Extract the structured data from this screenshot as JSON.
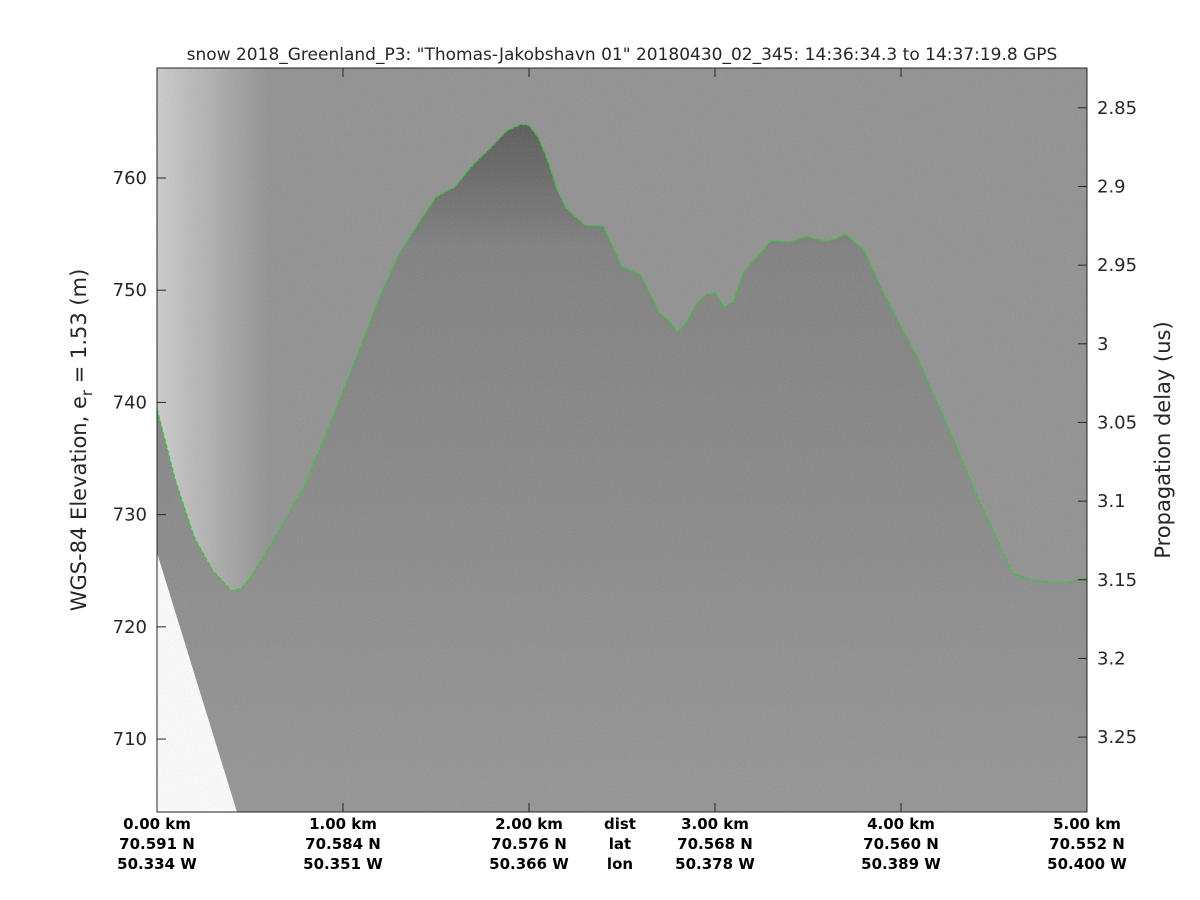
{
  "chart_data": {
    "type": "radar-echogram",
    "title": "snow 2018_Greenland_P3: \"Thomas-Jakobshavn 01\"  20180430_02_345: 14:36:34.3 to 14:37:19.8 GPS",
    "ylabel_left_main": "WGS-84 Elevation, e",
    "ylabel_left_sub": "r",
    "ylabel_left_tail": " = 1.53 (m)",
    "ylabel_right": "Propagation delay (us)",
    "x_range_km": [
      0,
      5
    ],
    "y_left_range_m": [
      703.5,
      769.8
    ],
    "y_left_ticks": [
      710,
      720,
      730,
      740,
      750,
      760
    ],
    "y_left_tick_labels": [
      "710",
      "720",
      "730",
      "740",
      "750",
      "760"
    ],
    "y_right_ticks": [
      2.85,
      2.9,
      2.95,
      3.0,
      3.05,
      3.1,
      3.15,
      3.2,
      3.25
    ],
    "y_right_tick_labels": [
      "2.85",
      "2.9",
      "2.95",
      "3",
      "3.05",
      "3.1",
      "3.15",
      "3.2",
      "3.25"
    ],
    "y_right_range_us": [
      2.8247,
      3.2976
    ],
    "x_ticks_km": [
      0,
      1,
      2,
      3,
      4,
      5
    ],
    "x_labels": [
      {
        "dist": "0.00 km",
        "lat": "70.591 N",
        "lon": "50.334 W"
      },
      {
        "dist": "1.00 km",
        "lat": "70.584 N",
        "lon": "50.351 W"
      },
      {
        "dist": "2.00 km",
        "lat": "70.576 N",
        "lon": "50.366 W"
      },
      {
        "dist": "3.00 km",
        "lat": "70.568 N",
        "lon": "50.378 W"
      },
      {
        "dist": "4.00 km",
        "lat": "70.560 N",
        "lon": "50.389 W"
      },
      {
        "dist": "5.00 km",
        "lat": "70.552 N",
        "lon": "50.400 W"
      }
    ],
    "x_row_captions": {
      "dist": "dist",
      "lat": "lat",
      "lon": "lon"
    },
    "surface_line_color": "#2ecc2e",
    "surface_track": {
      "dist_km": [
        0.0,
        0.1,
        0.2,
        0.3,
        0.4,
        0.45,
        0.5,
        0.6,
        0.7,
        0.8,
        0.9,
        1.0,
        1.1,
        1.2,
        1.3,
        1.4,
        1.5,
        1.6,
        1.7,
        1.8,
        1.88,
        1.96,
        2.0,
        2.05,
        2.1,
        2.15,
        2.2,
        2.3,
        2.4,
        2.5,
        2.6,
        2.7,
        2.75,
        2.8,
        2.85,
        2.9,
        2.95,
        3.0,
        3.05,
        3.1,
        3.15,
        3.2,
        3.25,
        3.3,
        3.4,
        3.5,
        3.55,
        3.6,
        3.65,
        3.7,
        3.8,
        3.9,
        4.0,
        4.1,
        4.2,
        4.3,
        4.4,
        4.5,
        4.6,
        4.7,
        4.8,
        4.9,
        5.0
      ],
      "elev_m": [
        739.4,
        733.0,
        728.0,
        725.0,
        723.2,
        723.4,
        724.3,
        727.0,
        729.8,
        732.8,
        736.8,
        741.0,
        745.2,
        749.5,
        753.2,
        755.8,
        758.3,
        759.2,
        761.2,
        762.8,
        764.2,
        764.8,
        764.7,
        763.6,
        761.6,
        759.0,
        757.3,
        755.8,
        755.7,
        752.1,
        751.4,
        748.0,
        747.3,
        746.3,
        747.2,
        748.8,
        749.6,
        749.8,
        748.5,
        749.0,
        751.5,
        752.5,
        753.4,
        754.4,
        754.3,
        754.8,
        754.5,
        754.4,
        754.6,
        755.0,
        753.6,
        750.0,
        746.8,
        743.6,
        739.8,
        736.0,
        732.0,
        728.4,
        724.8,
        724.2,
        724.0,
        724.0,
        724.3
      ]
    }
  }
}
